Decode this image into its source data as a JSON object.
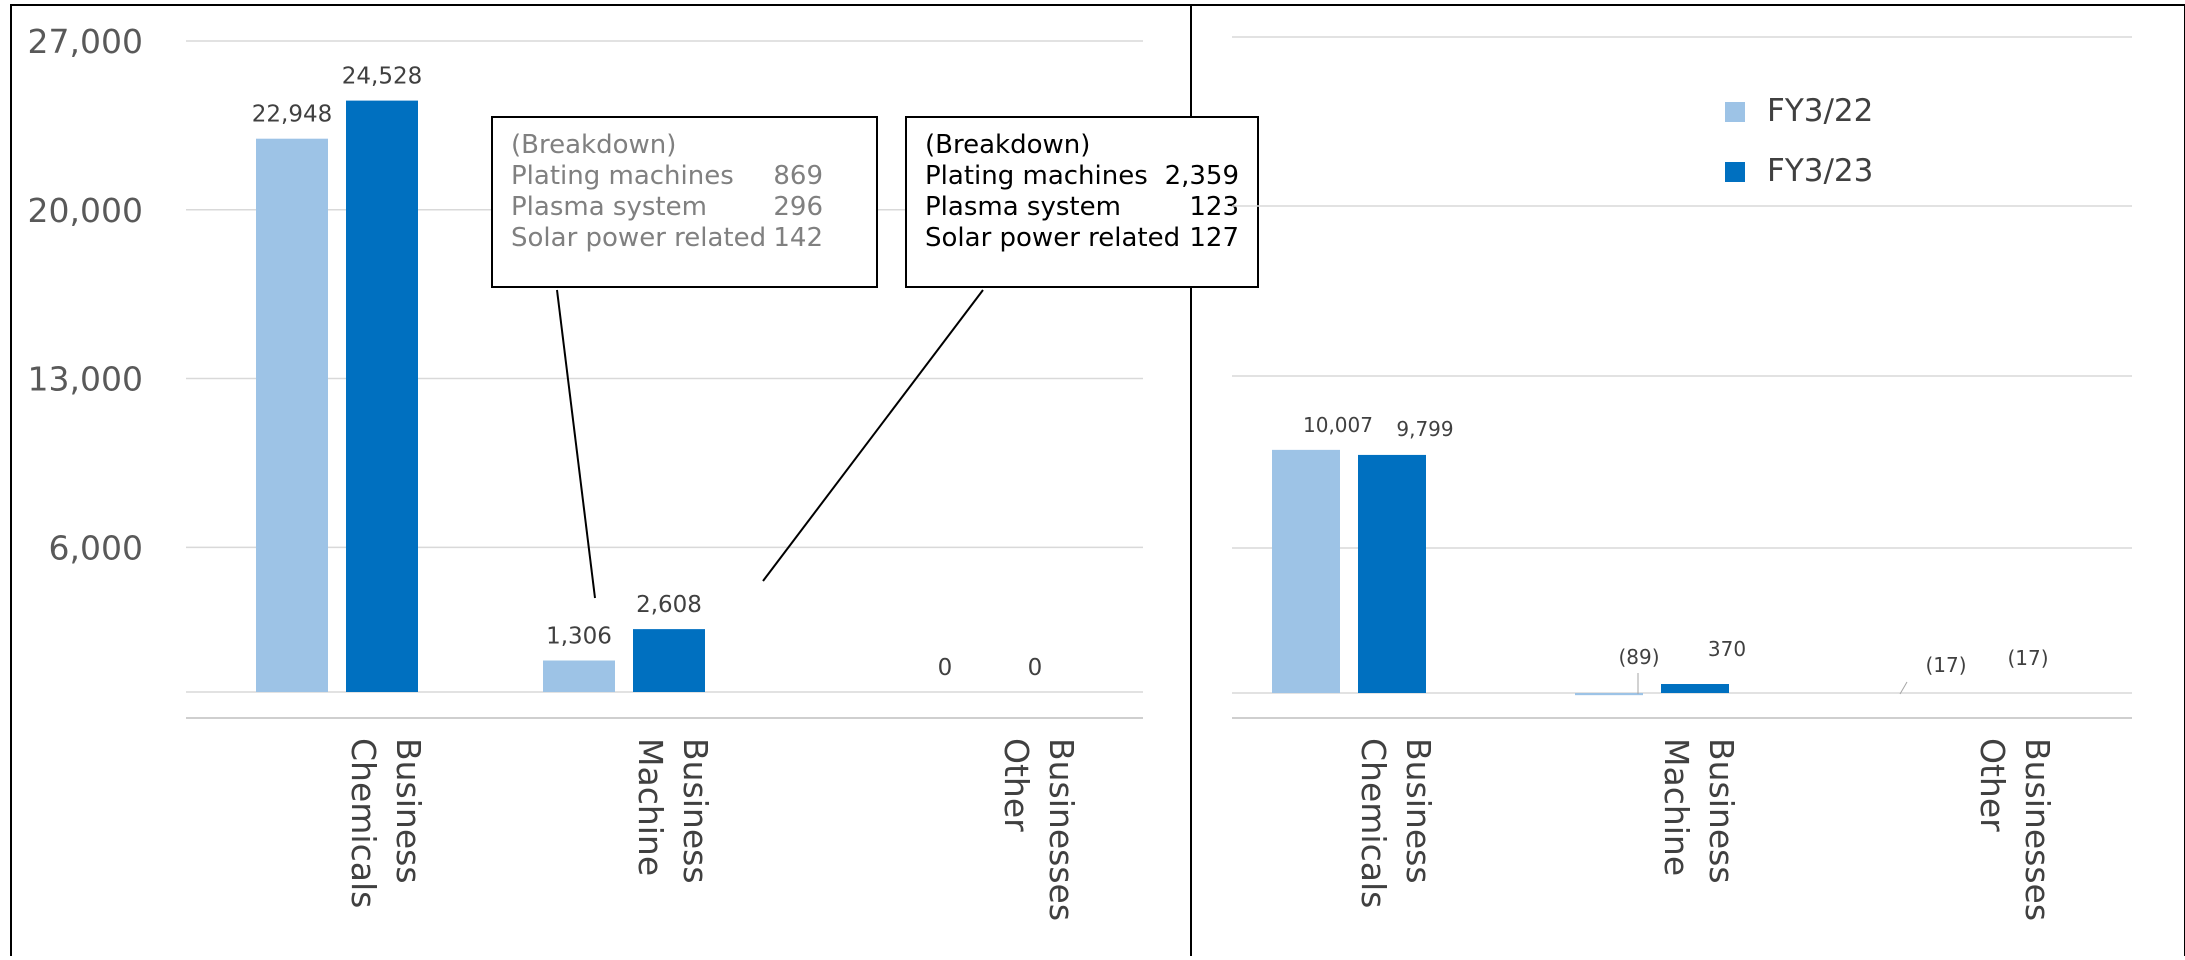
{
  "chart_data": [
    {
      "type": "bar",
      "categories": [
        [
          "Chemicals",
          "Business"
        ],
        [
          "Machine",
          "Business"
        ],
        [
          "Other",
          "Businesses"
        ]
      ],
      "series": [
        {
          "name": "FY3/22",
          "color": "#9DC3E6",
          "values": [
            22948,
            1306,
            0
          ],
          "labels": [
            "22,948",
            "1,306",
            "0"
          ]
        },
        {
          "name": "FY3/23",
          "color": "#0070C0",
          "values": [
            24528,
            2608,
            0
          ],
          "labels": [
            "24,528",
            "2,608",
            "0"
          ]
        }
      ],
      "yticks": [
        {
          "value": 27000,
          "label": "27,000"
        },
        {
          "value": 20000,
          "label": "20,000"
        },
        {
          "value": 13000,
          "label": "13,000"
        },
        {
          "value": 6000,
          "label": "6,000"
        }
      ],
      "ylim": [
        0,
        27000
      ],
      "grid": true,
      "annotations": [
        {
          "title": "(Breakdown)",
          "series": "FY3/22",
          "category": "Machine Business",
          "color": "#808080",
          "items": [
            {
              "label": "Plating machines",
              "value": "869"
            },
            {
              "label": "Plasma system",
              "value": "296"
            },
            {
              "label": "Solar power related",
              "value": "142"
            }
          ]
        },
        {
          "title": "(Breakdown)",
          "series": "FY3/23",
          "category": "Machine Business",
          "color": "#000000",
          "items": [
            {
              "label": "Plating machines",
              "value": "2,359"
            },
            {
              "label": "Plasma system",
              "value": "123"
            },
            {
              "label": "Solar power related",
              "value": "127"
            }
          ]
        }
      ]
    },
    {
      "type": "bar",
      "categories": [
        [
          "Chemicals",
          "Business"
        ],
        [
          "Machine",
          "Business"
        ],
        [
          "Other",
          "Businesses"
        ]
      ],
      "series": [
        {
          "name": "FY3/22",
          "color": "#9DC3E6",
          "values": [
            10007,
            -89,
            -17
          ],
          "labels": [
            "10,007",
            "(89)",
            "(17)"
          ]
        },
        {
          "name": "FY3/23",
          "color": "#0070C0",
          "values": [
            9799,
            370,
            -17
          ],
          "labels": [
            "9,799",
            "370",
            "(17)"
          ]
        }
      ],
      "legend": {
        "position": "top-right",
        "entries": [
          "FY3/22",
          "FY3/23"
        ]
      },
      "grid": true
    }
  ]
}
